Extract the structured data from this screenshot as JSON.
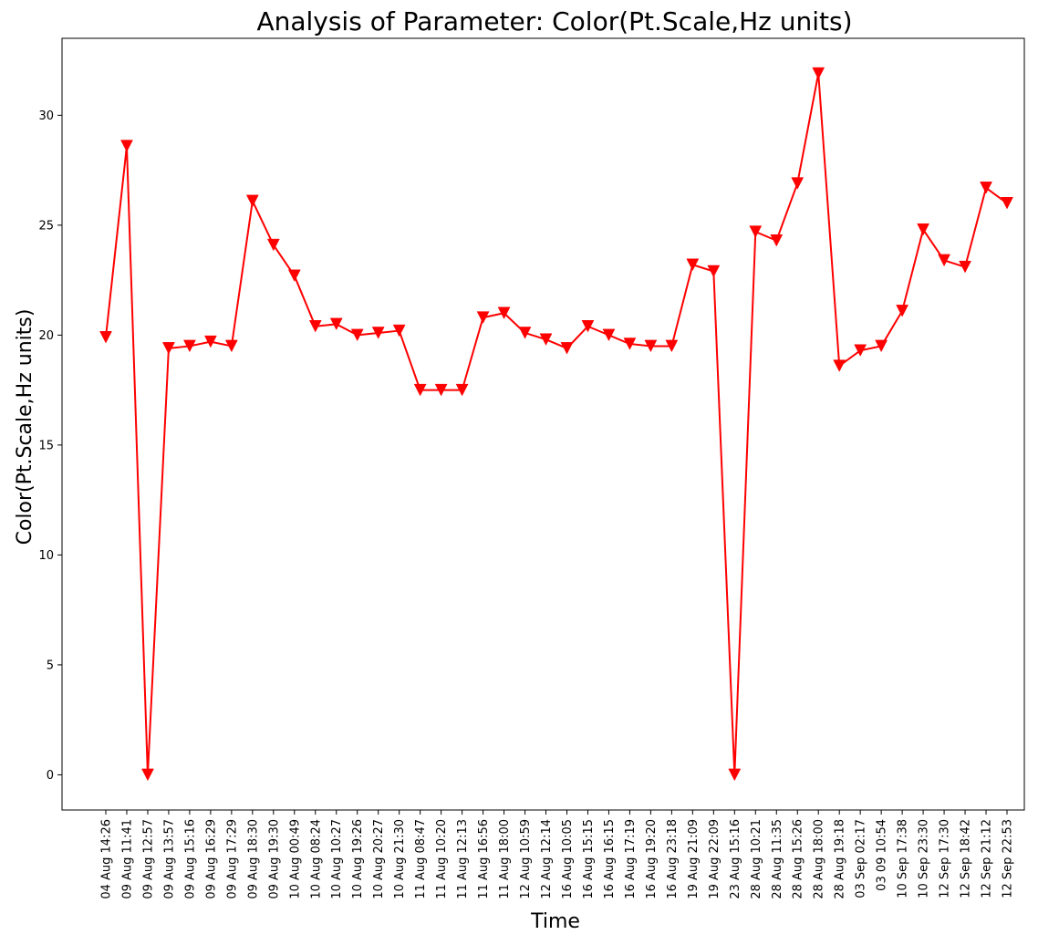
{
  "chart_data": {
    "type": "line",
    "title": "Analysis of Parameter: Color(Pt.Scale,Hz units)",
    "xlabel": "Time",
    "ylabel": "Color(Pt.Scale,Hz units)",
    "ylim": [
      -1.6,
      33.5
    ],
    "yticks": [
      0,
      5,
      10,
      15,
      20,
      25,
      30
    ],
    "grid": false,
    "marker": "triangle-down",
    "color": "#ff0000",
    "categories": [
      "04 Aug 14:26",
      "09 Aug 11:41",
      "09 Aug 12:57",
      "09 Aug 13:57",
      "09 Aug 15:16",
      "09 Aug 16:29",
      "09 Aug 17:29",
      "09 Aug 18:30",
      "09 Aug 19:30",
      "10 Aug 00:49",
      "10 Aug 08:24",
      "10 Aug 10:27",
      "10 Aug 19:26",
      "10 Aug 20:27",
      "10 Aug 21:30",
      "11 Aug 08:47",
      "11 Aug 10:20",
      "11 Aug 12:13",
      "11 Aug 16:56",
      "11 Aug 18:00",
      "12 Aug 10:59",
      "12 Aug 12:14",
      "16 Aug 10:05",
      "16 Aug 15:15",
      "16 Aug 16:15",
      "16 Aug 17:19",
      "16 Aug 19:20",
      "16 Aug 23:18",
      "19 Aug 21:09",
      "19 Aug 22:09",
      "23 Aug 15:16",
      "28 Aug 10:21",
      "28 Aug 11:35",
      "28 Aug 15:26",
      "28 Aug 18:00",
      "28 Aug 19:18",
      "03 Sep 02:17",
      "03 09 10:54",
      "10 Sep 17:38",
      "10 Sep 23:30",
      "12 Sep 17:30",
      "12 Sep 18:42",
      "12 Sep 21:12",
      "12 Sep 22:53"
    ],
    "values": [
      19.9,
      28.6,
      0.0,
      19.4,
      19.5,
      19.7,
      19.5,
      26.1,
      24.1,
      22.7,
      20.4,
      20.5,
      20.0,
      20.1,
      20.2,
      17.5,
      17.5,
      17.5,
      20.8,
      21.0,
      20.1,
      19.8,
      19.4,
      20.4,
      20.0,
      19.6,
      19.5,
      19.5,
      23.2,
      22.9,
      0.0,
      24.7,
      24.3,
      26.9,
      31.9,
      18.6,
      19.3,
      19.5,
      21.1,
      24.8,
      23.4,
      23.1,
      26.7,
      26.0
    ]
  }
}
